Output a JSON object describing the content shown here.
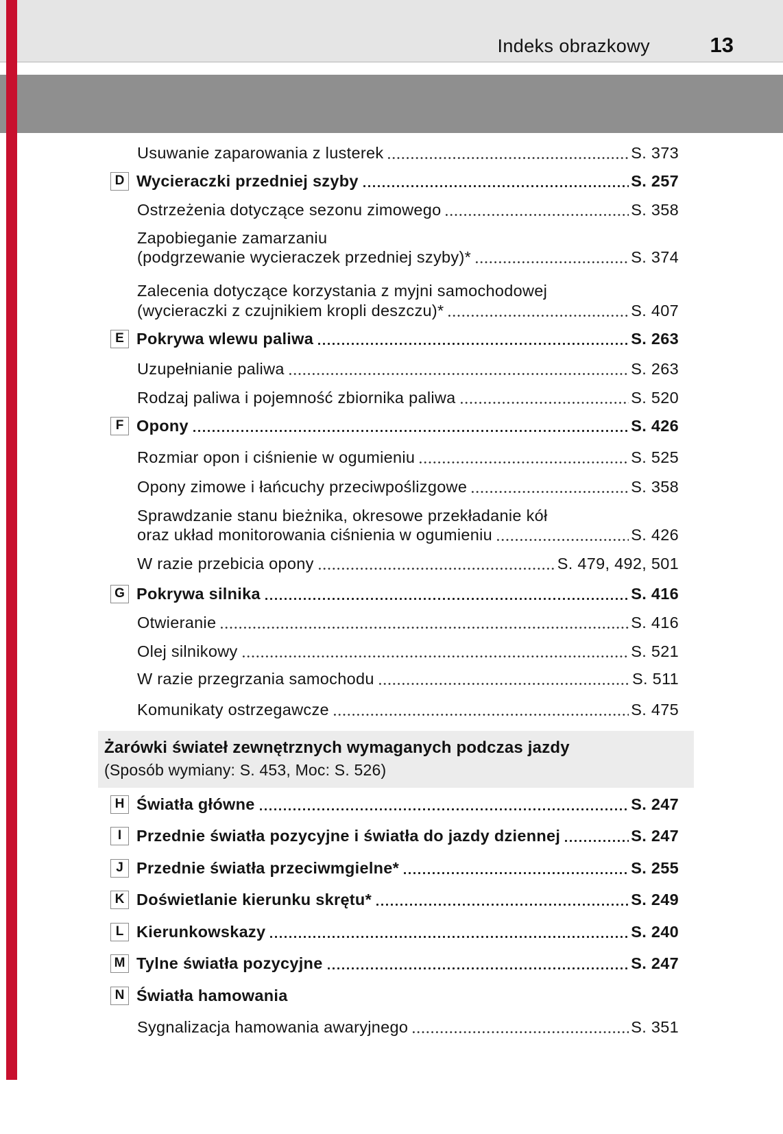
{
  "header": {
    "section_title": "Indeks obrazkowy",
    "page_number": "13"
  },
  "colors": {
    "accent_red": "#c8102e",
    "header_band": "#e5e5e5",
    "divider_band": "#8f8f8f",
    "note_box": "#ececec"
  },
  "toc_upper": {
    "entries": [
      {
        "letter": null,
        "bold": false,
        "lines": [
          {
            "text": "Usuwanie zaparowania z lusterek",
            "page": "S. 373"
          }
        ]
      },
      {
        "letter": "D",
        "bold": true,
        "lines": [
          {
            "text": "Wycieraczki przedniej szyby",
            "page": "S. 257"
          }
        ]
      },
      {
        "letter": null,
        "bold": false,
        "lines": [
          {
            "text": "Ostrzeżenia dotyczące sezonu zimowego",
            "page": "S. 358"
          }
        ]
      },
      {
        "letter": null,
        "bold": false,
        "lines": [
          {
            "text": "Zapobieganie zamarzaniu",
            "page": null
          },
          {
            "text": "(podgrzewanie wycieraczek przedniej szyby)*",
            "page": "S. 374"
          }
        ]
      },
      {
        "letter": null,
        "bold": false,
        "lines": [
          {
            "text": "Zalecenia dotyczące korzystania z myjni samochodowej",
            "page": null
          },
          {
            "text": "(wycieraczki z czujnikiem kropli deszczu)*",
            "page": "S. 407"
          }
        ]
      },
      {
        "letter": "E",
        "bold": true,
        "lines": [
          {
            "text": "Pokrywa wlewu paliwa",
            "page": "S. 263"
          }
        ]
      },
      {
        "letter": null,
        "bold": false,
        "lines": [
          {
            "text": "Uzupełnianie paliwa",
            "page": "S. 263"
          }
        ]
      },
      {
        "letter": null,
        "bold": false,
        "lines": [
          {
            "text": "Rodzaj paliwa i pojemność zbiornika paliwa",
            "page": "S. 520"
          }
        ]
      },
      {
        "letter": "F",
        "bold": true,
        "lines": [
          {
            "text": "Opony",
            "page": "S. 426"
          }
        ]
      },
      {
        "letter": null,
        "bold": false,
        "lines": [
          {
            "text": "Rozmiar opon i ciśnienie w ogumieniu",
            "page": "S. 525"
          }
        ]
      },
      {
        "letter": null,
        "bold": false,
        "lines": [
          {
            "text": "Opony zimowe i łańcuchy przeciwpoślizgowe",
            "page": "S. 358"
          }
        ]
      },
      {
        "letter": null,
        "bold": false,
        "lines": [
          {
            "text": "Sprawdzanie stanu bieżnika, okresowe przekładanie kół",
            "page": null
          },
          {
            "text": "oraz układ monitorowania ciśnienia w ogumieniu",
            "page": "S. 426"
          }
        ]
      },
      {
        "letter": null,
        "bold": false,
        "lines": [
          {
            "text": "W razie przebicia opony",
            "page": "S. 479, 492, 501"
          }
        ]
      },
      {
        "letter": "G",
        "bold": true,
        "lines": [
          {
            "text": "Pokrywa silnika",
            "page": "S. 416"
          }
        ]
      },
      {
        "letter": null,
        "bold": false,
        "lines": [
          {
            "text": "Otwieranie",
            "page": "S. 416"
          }
        ]
      },
      {
        "letter": null,
        "bold": false,
        "lines": [
          {
            "text": "Olej silnikowy",
            "page": "S. 521"
          }
        ]
      },
      {
        "letter": null,
        "bold": false,
        "lines": [
          {
            "text": "W razie przegrzania samochodu",
            "page": "S. 511"
          }
        ]
      },
      {
        "letter": null,
        "bold": false,
        "lines": [
          {
            "text": "Komunikaty ostrzegawcze",
            "page": "S. 475"
          }
        ]
      }
    ]
  },
  "note_box": {
    "title": "Żarówki świateł zewnętrznych wymaganych podczas jazdy",
    "subtitle": "(Sposób wymiany: S. 453, Moc: S. 526)"
  },
  "toc_lower": {
    "entries": [
      {
        "letter": "H",
        "bold": true,
        "lines": [
          {
            "text": "Światła główne",
            "page": "S. 247"
          }
        ]
      },
      {
        "letter": "I",
        "bold": true,
        "lines": [
          {
            "text": "Przednie światła pozycyjne i światła do jazdy dziennej",
            "page": "S. 247"
          }
        ]
      },
      {
        "letter": "J",
        "bold": true,
        "lines": [
          {
            "text": "Przednie światła przeciwmgielne*",
            "page": "S. 255"
          }
        ]
      },
      {
        "letter": "K",
        "bold": true,
        "lines": [
          {
            "text": "Doświetlanie kierunku skrętu*",
            "page": "S. 249"
          }
        ]
      },
      {
        "letter": "L",
        "bold": true,
        "lines": [
          {
            "text": "Kierunkowskazy",
            "page": "S. 240"
          }
        ]
      },
      {
        "letter": "M",
        "bold": true,
        "lines": [
          {
            "text": "Tylne światła pozycyjne",
            "page": "S. 247"
          }
        ]
      },
      {
        "letter": "N",
        "bold": true,
        "lines": [
          {
            "text": "Światła hamowania",
            "page": null
          }
        ]
      },
      {
        "letter": null,
        "bold": false,
        "lines": [
          {
            "text": "Sygnalizacja hamowania awaryjnego",
            "page": "S. 351"
          }
        ]
      }
    ]
  }
}
